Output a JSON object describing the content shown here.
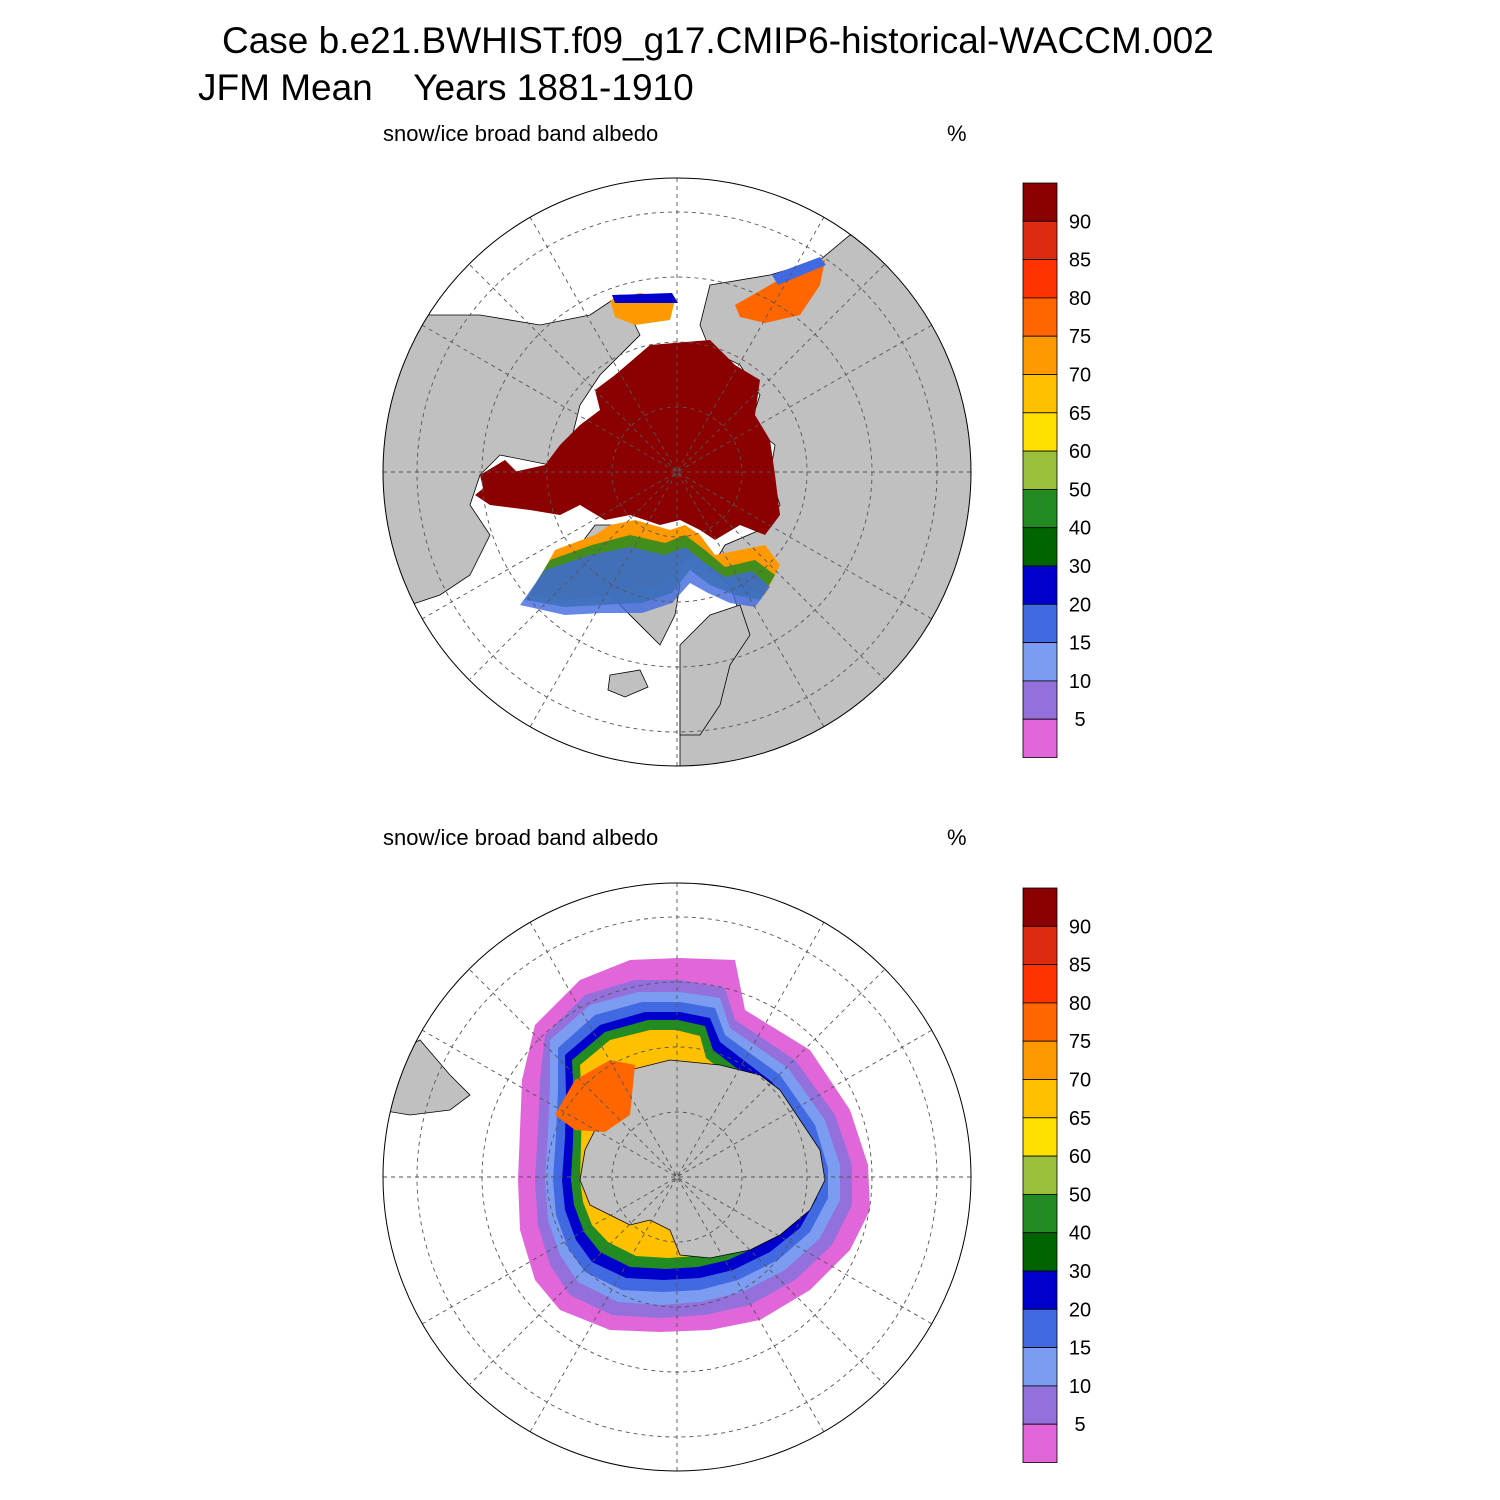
{
  "header": {
    "case_line": "Case b.e21.BWHIST.f09_g17.CMIP6-historical-WACCM.002",
    "period_line": "JFM Mean    Years 1881-1910"
  },
  "panels": [
    {
      "variable": "snow/ice broad band albedo",
      "units": "%",
      "hemisphere": "north"
    },
    {
      "variable": "snow/ice broad band albedo",
      "units": "%",
      "hemisphere": "south"
    }
  ],
  "colorbar": {
    "levels": [
      "5",
      "10",
      "15",
      "20",
      "30",
      "40",
      "50",
      "60",
      "65",
      "70",
      "75",
      "80",
      "85",
      "90"
    ],
    "colors": [
      "#e066d9",
      "#9370db",
      "#7b9cf0",
      "#4169e1",
      "#0000cd",
      "#006400",
      "#228b22",
      "#9abf3a",
      "#ffe000",
      "#ffc000",
      "#ff9900",
      "#ff6600",
      "#ff3300",
      "#dd2b11",
      "#8b0000"
    ]
  },
  "colors": {
    "land": "#c0c0c0",
    "ocean": "#ffffff",
    "grid": "#555555"
  }
}
